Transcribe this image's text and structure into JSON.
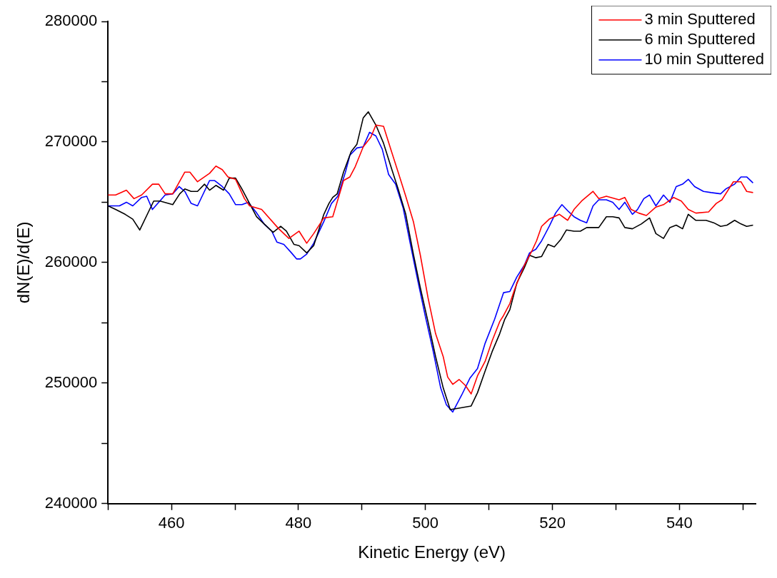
{
  "chart_data": {
    "type": "line",
    "xlabel": "Kinetic Energy (eV)",
    "ylabel": "dN(E)/d(E)",
    "xlim": [
      450,
      552
    ],
    "xticks": [
      {
        "value": 450,
        "label": null
      },
      460,
      {
        "value": 470,
        "label": null
      },
      480,
      {
        "value": 490,
        "label": null
      },
      500,
      {
        "value": 510,
        "label": null
      },
      520,
      {
        "value": 530,
        "label": null
      },
      540,
      {
        "value": 550,
        "label": null
      }
    ],
    "ylim": [
      240000,
      280000
    ],
    "yticks": [
      240000,
      {
        "value": 245000,
        "label": null
      },
      250000,
      {
        "value": 255000,
        "label": null
      },
      260000,
      {
        "value": 265000,
        "label": null
      },
      270000,
      {
        "value": 275000,
        "label": null
      },
      280000
    ],
    "grid": false,
    "legend": "top right",
    "marker": "none",
    "line_style": "solid",
    "series": [
      {
        "name": "3 min Sputtered",
        "color": "#ff0000",
        "x": [
          450,
          451.2,
          452.9,
          454.1,
          455.3,
          457.0,
          458.0,
          459.0,
          460.2,
          462.1,
          462.9,
          464.1,
          466.0,
          467.0,
          468.0,
          468.9,
          470.1,
          471.5,
          472.3,
          474.2,
          476.9,
          478.5,
          480.1,
          481.3,
          482.4,
          484.0,
          485.4,
          486.2,
          487.1,
          488.1,
          488.9,
          490.2,
          491.4,
          492.2,
          493.4,
          494.6,
          495.7,
          496.9,
          498.1,
          499.2,
          500.4,
          501.6,
          502.8,
          503.5,
          504.3,
          505.3,
          506.3,
          507.2,
          508.2,
          509.4,
          510.5,
          511.7,
          512.3,
          513.3,
          514.0,
          514.8,
          515.6,
          516.8,
          517.5,
          518.3,
          519.5,
          521.1,
          522.4,
          523.4,
          524.6,
          526.4,
          527.3,
          528.5,
          530.5,
          531.4,
          532.4,
          533.6,
          534.8,
          536.3,
          537.5,
          539.1,
          540.3,
          541.4,
          542.6,
          544.6,
          545.8,
          546.7,
          548.5,
          549.7,
          550.6,
          551.6
        ],
        "values": [
          265600,
          265600,
          266000,
          265300,
          265600,
          266500,
          266500,
          265700,
          265700,
          267500,
          267500,
          266700,
          267400,
          268000,
          267700,
          267100,
          266900,
          265300,
          264700,
          264400,
          262800,
          262000,
          262600,
          261600,
          262400,
          263700,
          263800,
          265200,
          266800,
          267100,
          267900,
          269600,
          270400,
          271400,
          271300,
          269300,
          267500,
          265500,
          263400,
          260600,
          257100,
          254100,
          252200,
          250500,
          249900,
          250300,
          249800,
          249100,
          250600,
          251800,
          253500,
          255100,
          255600,
          256600,
          257700,
          258800,
          259800,
          261000,
          261800,
          263000,
          263600,
          264000,
          263500,
          264400,
          265100,
          265900,
          265300,
          265500,
          265200,
          265400,
          264400,
          264100,
          263900,
          264600,
          264800,
          265400,
          265100,
          264400,
          264100,
          264200,
          264900,
          265200,
          266700,
          266700,
          265900,
          265800
        ]
      },
      {
        "name": "6 min Sputtered",
        "color": "#000000",
        "x": [
          450,
          451.2,
          452.7,
          453.9,
          455.0,
          457.2,
          458.2,
          460.2,
          461.3,
          462.1,
          463.1,
          464.1,
          465.2,
          466.0,
          467.0,
          468.2,
          469.1,
          470.1,
          471.1,
          472.3,
          473.4,
          474.6,
          476.0,
          477.2,
          478.1,
          479.3,
          480.1,
          481.3,
          482.4,
          484.0,
          484.8,
          485.4,
          486.1,
          487.1,
          488.3,
          489.2,
          490.2,
          491.0,
          492.2,
          493.4,
          494.6,
          495.7,
          496.9,
          498.1,
          499.2,
          500.4,
          501.6,
          502.8,
          503.9,
          505.1,
          507.2,
          508.2,
          509.4,
          510.5,
          511.7,
          512.5,
          513.3,
          514.4,
          515.6,
          516.4,
          517.4,
          518.3,
          519.3,
          520.3,
          521.3,
          522.2,
          523.4,
          524.4,
          525.4,
          527.3,
          528.5,
          529.5,
          530.5,
          531.4,
          532.6,
          534.0,
          535.3,
          536.3,
          537.5,
          538.5,
          539.5,
          540.5,
          541.4,
          542.6,
          544.2,
          545.4,
          546.5,
          547.5,
          548.7,
          549.7,
          550.6,
          551.6
        ],
        "values": [
          264700,
          264400,
          264000,
          263600,
          262700,
          265100,
          265100,
          264800,
          265700,
          266100,
          265900,
          265900,
          266500,
          266000,
          266400,
          266000,
          267000,
          267000,
          266100,
          264900,
          263800,
          263200,
          262500,
          263000,
          262600,
          261500,
          261400,
          260800,
          261400,
          264000,
          264900,
          265400,
          265700,
          267500,
          269200,
          269800,
          272000,
          272500,
          271400,
          269900,
          267900,
          266100,
          264000,
          260700,
          257900,
          255100,
          252200,
          249600,
          247800,
          247900,
          248100,
          249200,
          251000,
          252600,
          254100,
          255300,
          256100,
          258300,
          259600,
          260600,
          260400,
          260500,
          261500,
          261300,
          261900,
          262700,
          262600,
          262600,
          262900,
          262900,
          263800,
          263800,
          263700,
          262900,
          262800,
          263200,
          263700,
          262400,
          262000,
          262900,
          263100,
          262800,
          264000,
          263500,
          263500,
          263300,
          263000,
          263100,
          263500,
          263200,
          263000,
          263100
        ]
      },
      {
        "name": "10 min Sputtered",
        "color": "#0000ff",
        "x": [
          450,
          451.8,
          452.9,
          453.9,
          455.3,
          456.1,
          457.0,
          459.0,
          460.2,
          461.2,
          462.1,
          463.1,
          464.1,
          466.0,
          466.8,
          468.0,
          469.1,
          470.1,
          471.1,
          472.1,
          473.3,
          474.6,
          475.8,
          476.6,
          477.7,
          478.9,
          479.7,
          480.3,
          481.3,
          482.4,
          484.0,
          485.2,
          486.2,
          487.4,
          488.1,
          489.2,
          490.2,
          491.2,
          492.2,
          493.2,
          494.2,
          495.3,
          496.5,
          497.6,
          498.8,
          500.0,
          501.2,
          502.4,
          503.3,
          504.3,
          505.7,
          507.0,
          508.2,
          509.4,
          510.9,
          512.3,
          513.3,
          514.4,
          515.6,
          516.4,
          517.4,
          518.3,
          519.5,
          520.5,
          521.5,
          522.4,
          523.4,
          524.4,
          525.4,
          526.4,
          527.3,
          528.5,
          529.5,
          530.5,
          531.4,
          532.6,
          533.4,
          534.4,
          535.3,
          536.3,
          537.5,
          538.5,
          539.5,
          540.5,
          541.4,
          542.4,
          543.8,
          545.0,
          546.5,
          547.3,
          548.7,
          549.7,
          550.6,
          551.6
        ],
        "values": [
          264700,
          264700,
          265000,
          264700,
          265400,
          265500,
          264400,
          265600,
          265700,
          266300,
          265900,
          264900,
          264700,
          266800,
          266800,
          266300,
          265700,
          264800,
          264800,
          265000,
          264200,
          263200,
          262600,
          261700,
          261500,
          260800,
          260300,
          260300,
          260700,
          261600,
          263400,
          264900,
          265500,
          267500,
          268900,
          269500,
          269600,
          270800,
          270500,
          269400,
          267300,
          266500,
          264500,
          261600,
          258500,
          255500,
          252700,
          249600,
          248200,
          247600,
          249000,
          250400,
          251200,
          253300,
          255300,
          257500,
          257600,
          258800,
          259800,
          260800,
          261100,
          261800,
          263000,
          264100,
          264800,
          264300,
          263800,
          263500,
          263300,
          264700,
          265200,
          265200,
          265000,
          264400,
          265000,
          264000,
          264400,
          265300,
          265600,
          264700,
          265600,
          265000,
          266300,
          266500,
          266900,
          266300,
          265900,
          265800,
          265700,
          266100,
          266500,
          267100,
          267100,
          266600
        ]
      }
    ]
  }
}
